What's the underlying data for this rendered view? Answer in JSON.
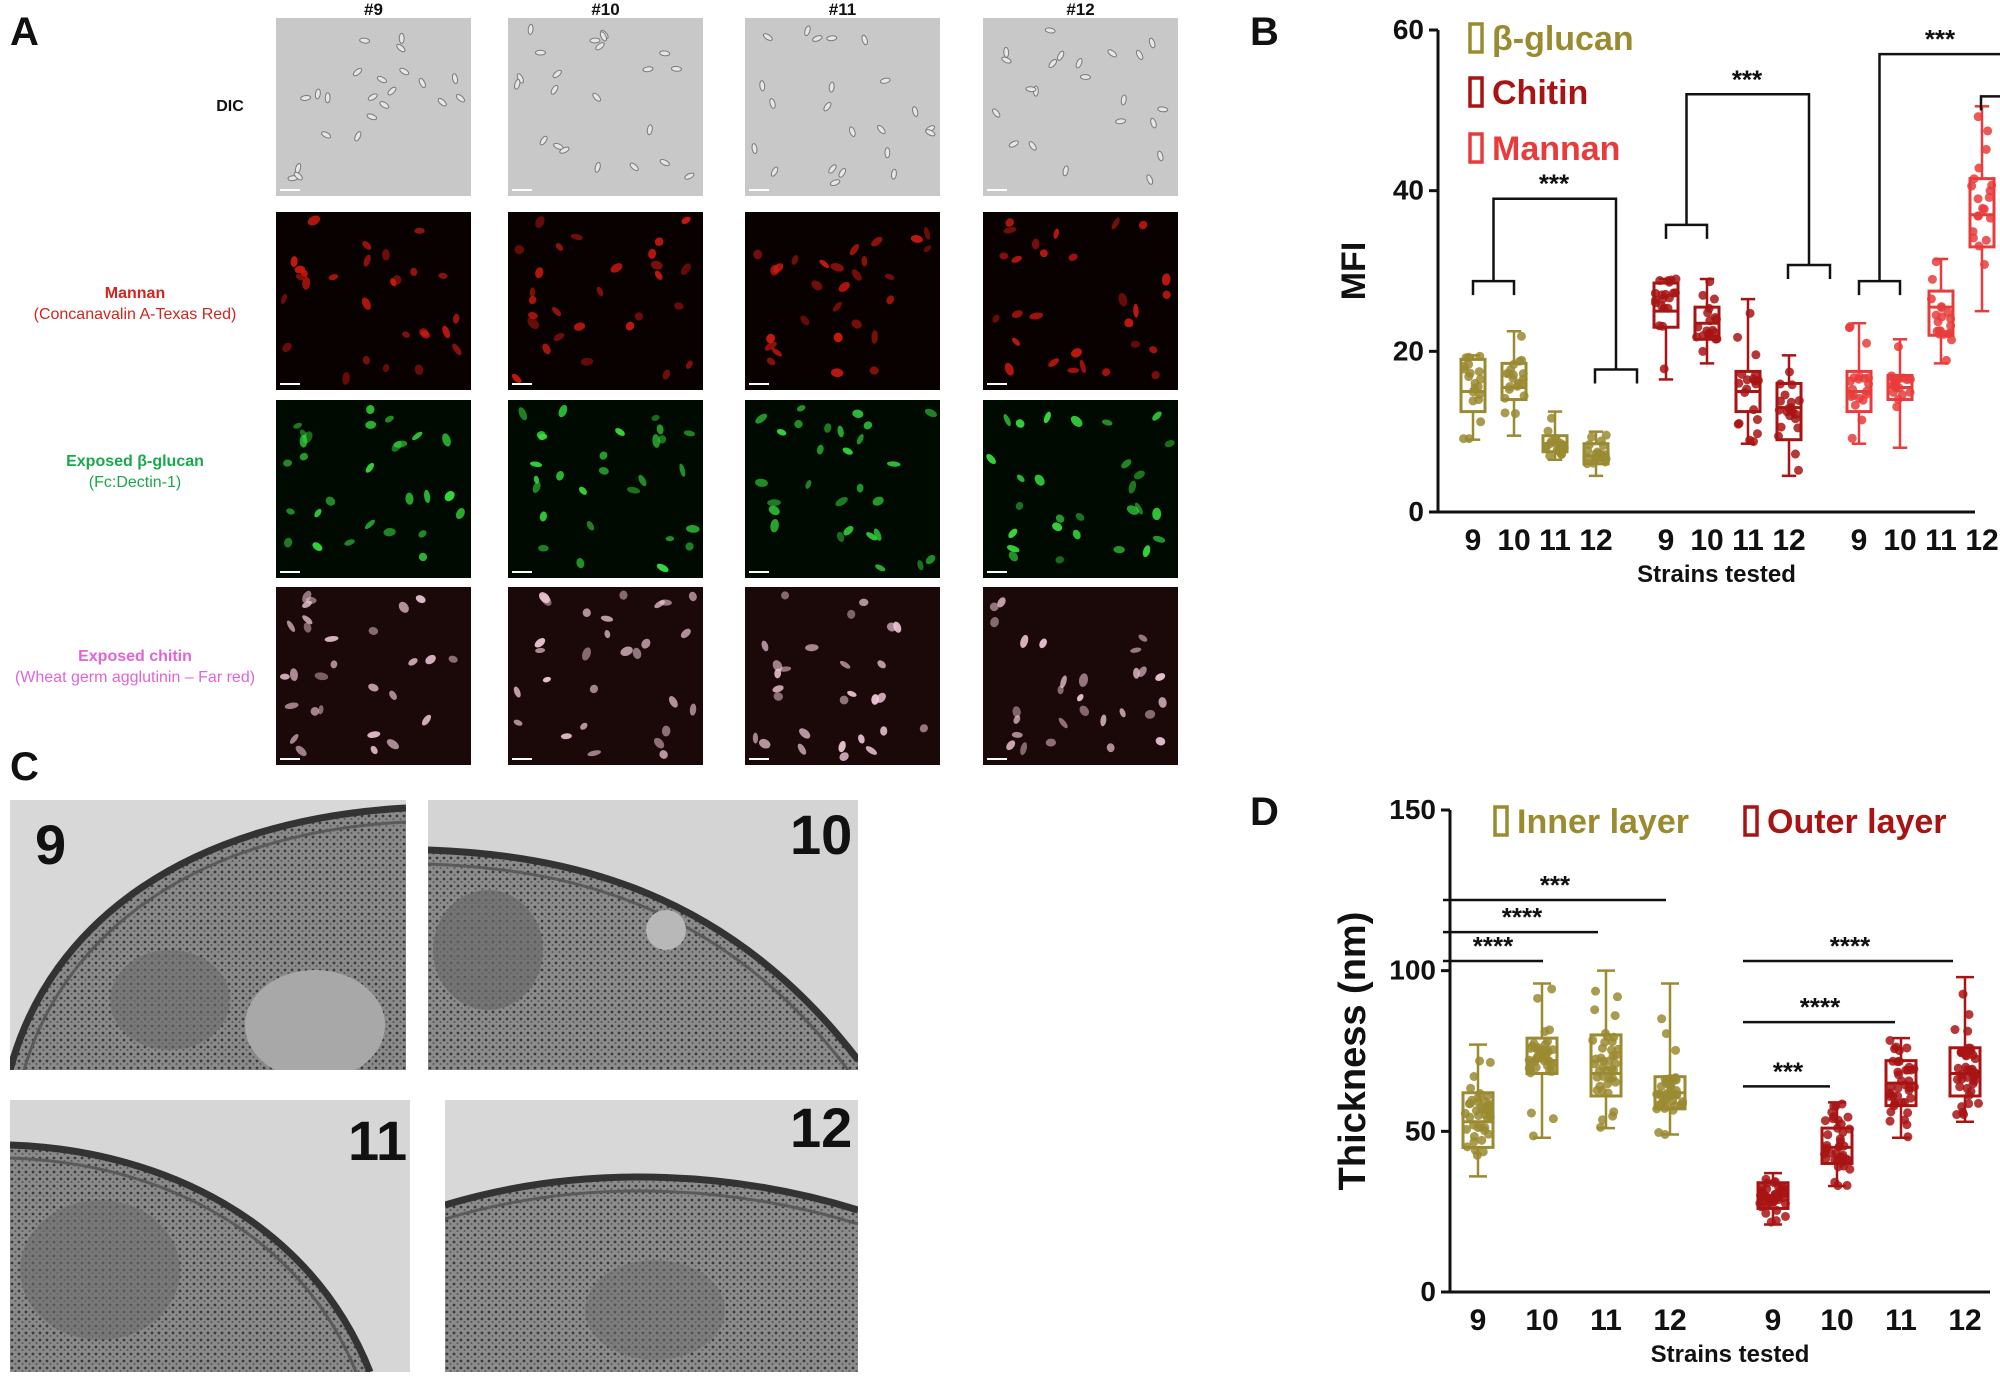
{
  "panels": {
    "a": "A",
    "b": "B",
    "c": "C",
    "d": "D"
  },
  "panel_a": {
    "columns": [
      "#9",
      "#10",
      "#11",
      "#12"
    ],
    "rows": [
      {
        "main": "DIC",
        "sub": "",
        "color": "#111111",
        "bg": "#c8c8c8",
        "cell": "#7a7a7a"
      },
      {
        "main": "Mannan",
        "sub": "(Concanavalin A-Texas Red)",
        "color": "#d1261e",
        "bg": "#090000",
        "cell": "#d01a10"
      },
      {
        "main": "Exposed β-glucan",
        "sub": "(Fc:Dectin-1)",
        "color": "#1aa84a",
        "bg": "#000a00",
        "cell": "#37e23f"
      },
      {
        "main": "Exposed chitin",
        "sub": "(Wheat germ agglutinin  – Far red)",
        "color": "#e064d8",
        "bg": "#1b0808",
        "cell": "#f0c8d8"
      }
    ]
  },
  "panel_c": {
    "labels": [
      "9",
      "10",
      "11",
      "12"
    ]
  },
  "chart_data": [
    {
      "type": "boxplot",
      "panel": "B",
      "ylabel": "MFI",
      "xlabel": "Strains tested",
      "ylim": [
        0,
        60
      ],
      "yticks": [
        0,
        20,
        40,
        60
      ],
      "categories": [
        "9",
        "10",
        "11",
        "12"
      ],
      "legend": [
        {
          "name": "β-glucan",
          "color": "#9a8a30"
        },
        {
          "name": "Chitin",
          "color": "#a81414"
        },
        {
          "name": "Mannan",
          "color": "#e83c3c"
        }
      ],
      "series": [
        {
          "name": "β-glucan",
          "color": "#9a8a30",
          "boxes": [
            {
              "min": 9,
              "q1": 12.5,
              "median": 15,
              "q3": 19,
              "max": 19.5
            },
            {
              "min": 9.5,
              "q1": 14,
              "median": 15.5,
              "q3": 18.5,
              "max": 22.5
            },
            {
              "min": 6.5,
              "q1": 7.5,
              "median": 8.5,
              "q3": 9.5,
              "max": 12.5
            },
            {
              "min": 4.5,
              "q1": 6,
              "median": 7,
              "q3": 8.5,
              "max": 10
            }
          ]
        },
        {
          "name": "Chitin",
          "color": "#a81414",
          "boxes": [
            {
              "min": 16.5,
              "q1": 23,
              "median": 25,
              "q3": 28.5,
              "max": 29
            },
            {
              "min": 18.5,
              "q1": 21.5,
              "median": 23.5,
              "q3": 25.5,
              "max": 29
            },
            {
              "min": 8.5,
              "q1": 12.5,
              "median": 15,
              "q3": 17.5,
              "max": 26.5
            },
            {
              "min": 4.5,
              "q1": 9,
              "median": 13,
              "q3": 16,
              "max": 19.5
            }
          ]
        },
        {
          "name": "Mannan",
          "color": "#e83c3c",
          "boxes": [
            {
              "min": 8.5,
              "q1": 12.5,
              "median": 15,
              "q3": 17.5,
              "max": 23.5
            },
            {
              "min": 8,
              "q1": 14,
              "median": 15.5,
              "q3": 17,
              "max": 21.5
            },
            {
              "min": 18.5,
              "q1": 22,
              "median": 25.5,
              "q3": 27.5,
              "max": 31.5
            },
            {
              "min": 25,
              "q1": 33,
              "median": 37,
              "q3": 41.5,
              "max": 50.5
            }
          ]
        }
      ],
      "annotations": [
        {
          "text": "***",
          "level": 39
        },
        {
          "text": "***",
          "level": 52
        },
        {
          "text": "***",
          "level": 57
        }
      ]
    },
    {
      "type": "boxplot",
      "panel": "D",
      "ylabel": "Thickness (nm)",
      "xlabel": "Strains tested",
      "ylim": [
        0,
        150
      ],
      "yticks": [
        0,
        50,
        100,
        150
      ],
      "categories": [
        "9",
        "10",
        "11",
        "12"
      ],
      "legend": [
        {
          "name": "Inner layer",
          "color": "#9a8a30"
        },
        {
          "name": "Outer layer",
          "color": "#a81414"
        }
      ],
      "series": [
        {
          "name": "Inner layer",
          "color": "#9a8a30",
          "boxes": [
            {
              "min": 36,
              "q1": 45,
              "median": 53,
              "q3": 62,
              "max": 77
            },
            {
              "min": 48,
              "q1": 68,
              "median": 72,
              "q3": 79,
              "max": 96
            },
            {
              "min": 51,
              "q1": 61,
              "median": 68,
              "q3": 80,
              "max": 100
            },
            {
              "min": 49,
              "q1": 57,
              "median": 62,
              "q3": 67,
              "max": 96
            }
          ]
        },
        {
          "name": "Outer layer",
          "color": "#a81414",
          "boxes": [
            {
              "min": 21,
              "q1": 26,
              "median": 30,
              "q3": 34,
              "max": 37
            },
            {
              "min": 33,
              "q1": 40,
              "median": 45,
              "q3": 51,
              "max": 59
            },
            {
              "min": 48,
              "q1": 58,
              "median": 65,
              "q3": 72,
              "max": 79
            },
            {
              "min": 53,
              "q1": 61,
              "median": 68,
              "q3": 76,
              "max": 98
            }
          ]
        }
      ],
      "annotations": [
        {
          "text": "****",
          "level": 103
        },
        {
          "text": "****",
          "level": 112
        },
        {
          "text": "***",
          "level": 122
        },
        {
          "text": "***",
          "level": 64
        },
        {
          "text": "****",
          "level": 84
        },
        {
          "text": "****",
          "level": 103
        }
      ]
    }
  ]
}
